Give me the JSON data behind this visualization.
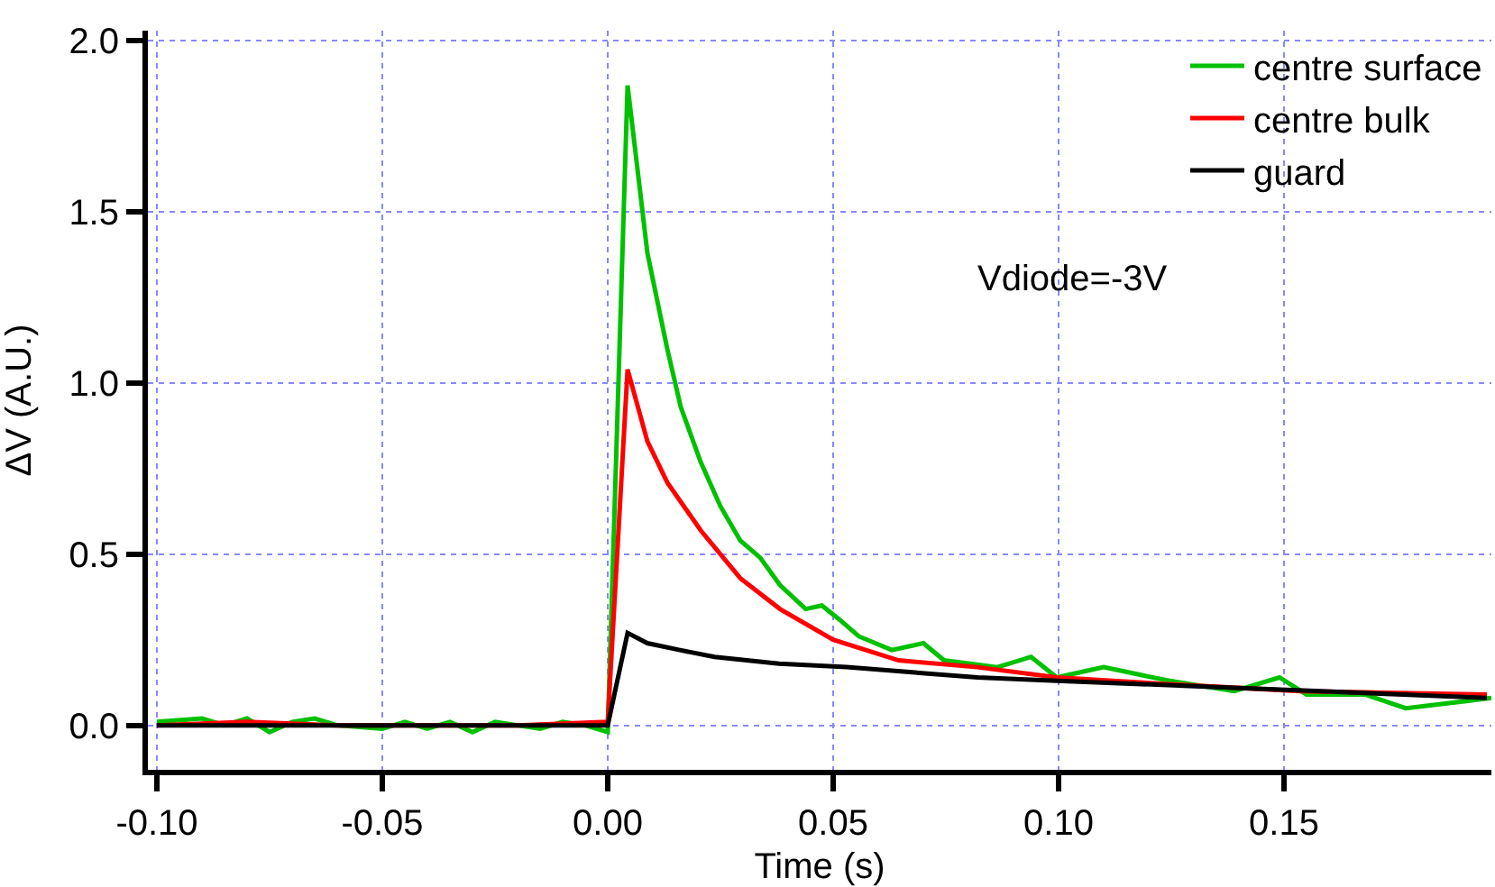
{
  "chart_data": {
    "type": "line",
    "xlabel": "Time (s)",
    "ylabel": "ΔV (A.U.)",
    "annotations": [
      "Vdiode=-3V"
    ],
    "xlim": [
      -0.102,
      0.196
    ],
    "ylim": [
      -0.13,
      2.03
    ],
    "xticks": [
      {
        "value": -0.1,
        "label": "-0.10"
      },
      {
        "value": -0.05,
        "label": "-0.05"
      },
      {
        "value": 0,
        "label": "0.00"
      },
      {
        "value": 0.05,
        "label": "0.05"
      },
      {
        "value": 0.1,
        "label": "0.10"
      },
      {
        "value": 0.15,
        "label": "0.15"
      }
    ],
    "yticks": [
      {
        "value": 0,
        "label": "0.0"
      },
      {
        "value": 0.5,
        "label": "0.5"
      },
      {
        "value": 1,
        "label": "1.0"
      },
      {
        "value": 1.5,
        "label": "1.5"
      },
      {
        "value": 2,
        "label": "2.0"
      }
    ],
    "grid": true,
    "legend": "top right",
    "marker": "none",
    "line_style": "solid",
    "series": [
      {
        "name": "centre surface",
        "color": "#00c000",
        "x": [
          -0.1,
          -0.09,
          -0.085,
          -0.08,
          -0.075,
          -0.07,
          -0.065,
          -0.06,
          -0.05,
          -0.045,
          -0.04,
          -0.035,
          -0.03,
          -0.025,
          -0.02,
          -0.015,
          -0.01,
          -0.005,
          0,
          0.0044,
          0.0088,
          0.0132,
          0.0162,
          0.0206,
          0.025,
          0.0294,
          0.0338,
          0.0382,
          0.0439,
          0.0475,
          0.0513,
          0.0557,
          0.063,
          0.07,
          0.0746,
          0.0864,
          0.0939,
          0.0996,
          0.11,
          0.1246,
          0.139,
          0.149,
          0.155,
          0.168,
          0.177,
          0.19,
          0.196
        ],
        "values": [
          0.01,
          0.02,
          0.0,
          0.02,
          -0.02,
          0.01,
          0.02,
          0.0,
          -0.01,
          0.01,
          -0.01,
          0.01,
          -0.02,
          0.01,
          0.0,
          -0.01,
          0.01,
          0.0,
          -0.02,
          1.87,
          1.38,
          1.1,
          0.93,
          0.77,
          0.64,
          0.54,
          0.49,
          0.41,
          0.34,
          0.35,
          0.31,
          0.26,
          0.22,
          0.24,
          0.19,
          0.17,
          0.2,
          0.14,
          0.17,
          0.13,
          0.1,
          0.14,
          0.09,
          0.09,
          0.05,
          0.07,
          0.08
        ]
      },
      {
        "name": "centre bulk",
        "color": "#ff0000",
        "x": [
          -0.1,
          -0.08,
          -0.06,
          -0.04,
          -0.02,
          0,
          0.0044,
          0.0088,
          0.0132,
          0.0206,
          0.0294,
          0.0382,
          0.05,
          0.0645,
          0.082,
          0.0996,
          0.1246,
          0.1535,
          0.195
        ],
        "values": [
          0.0,
          0.01,
          0.0,
          0.0,
          0.0,
          0.01,
          1.04,
          0.83,
          0.71,
          0.57,
          0.43,
          0.34,
          0.25,
          0.19,
          0.17,
          0.14,
          0.12,
          0.1,
          0.09
        ]
      },
      {
        "name": "guard",
        "color": "#000000",
        "x": [
          -0.1,
          -0.08,
          -0.06,
          -0.04,
          -0.02,
          0,
          0.0044,
          0.0088,
          0.016,
          0.0237,
          0.038,
          0.053,
          0.0675,
          0.082,
          0.0996,
          0.139,
          0.195
        ],
        "values": [
          0.0,
          0.0,
          0.0,
          0.0,
          0.0,
          0.0,
          0.27,
          0.24,
          0.22,
          0.2,
          0.18,
          0.17,
          0.155,
          0.14,
          0.13,
          0.11,
          0.08
        ]
      }
    ]
  }
}
